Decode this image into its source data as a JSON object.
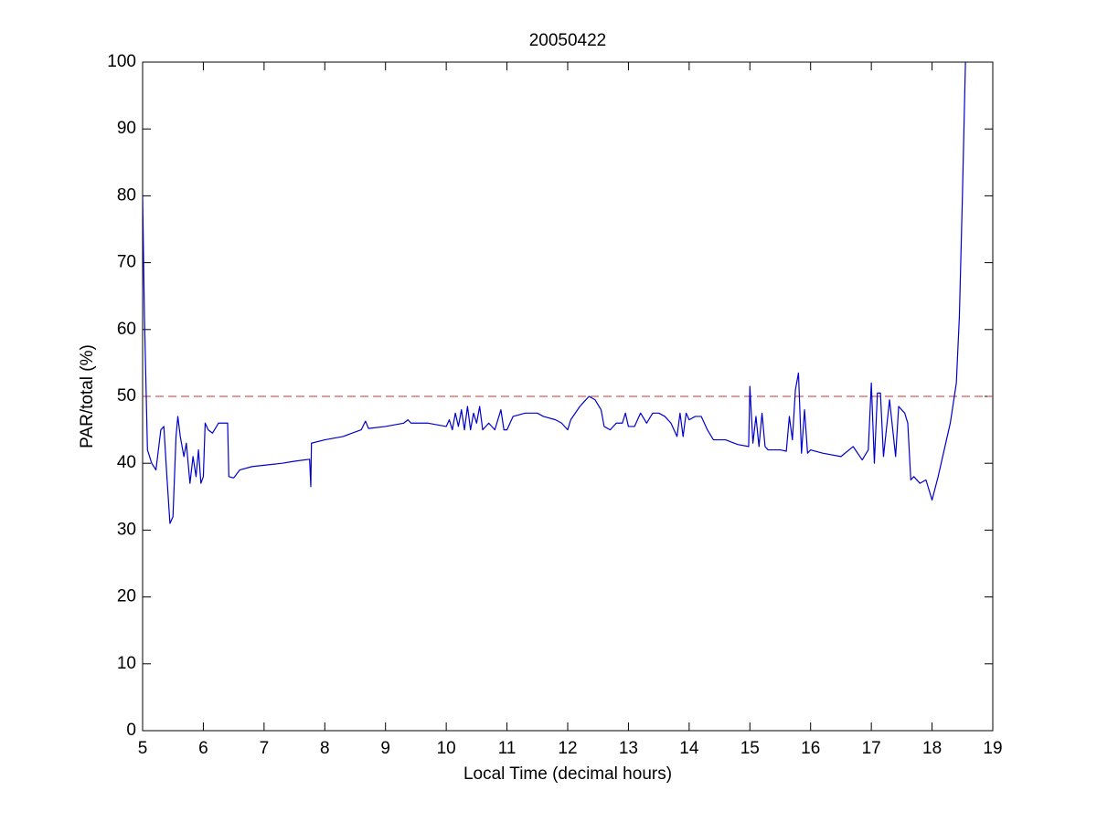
{
  "chart_data": {
    "type": "line",
    "title": "20050422",
    "x_label": "Local Time (decimal hours)",
    "y_label": "PAR/total (%)",
    "xlim": [
      5,
      19
    ],
    "ylim": [
      0,
      100
    ],
    "xticks": [
      5,
      6,
      7,
      8,
      9,
      10,
      11,
      12,
      13,
      14,
      15,
      16,
      17,
      18,
      19
    ],
    "yticks": [
      0,
      10,
      20,
      30,
      40,
      50,
      60,
      70,
      80,
      90,
      100
    ],
    "grid": false,
    "reference_line": {
      "value": 50,
      "color": "#cc3333"
    },
    "x": [
      5.0,
      5.03,
      5.08,
      5.15,
      5.22,
      5.3,
      5.35,
      5.4,
      5.45,
      5.5,
      5.55,
      5.58,
      5.62,
      5.68,
      5.72,
      5.78,
      5.83,
      5.88,
      5.92,
      5.96,
      6.0,
      6.03,
      6.08,
      6.15,
      6.25,
      6.35,
      6.4,
      6.42,
      6.5,
      6.6,
      6.8,
      7.0,
      7.3,
      7.5,
      7.75,
      7.77,
      7.78,
      8.0,
      8.3,
      8.6,
      8.67,
      8.72,
      9.0,
      9.3,
      9.37,
      9.42,
      9.7,
      10.0,
      10.05,
      10.1,
      10.15,
      10.2,
      10.25,
      10.3,
      10.35,
      10.4,
      10.45,
      10.5,
      10.55,
      10.6,
      10.7,
      10.8,
      10.9,
      10.95,
      11.0,
      11.1,
      11.3,
      11.5,
      11.6,
      11.8,
      11.9,
      12.0,
      12.05,
      12.2,
      12.35,
      12.45,
      12.55,
      12.6,
      12.7,
      12.8,
      12.9,
      12.95,
      13.0,
      13.1,
      13.2,
      13.3,
      13.4,
      13.5,
      13.6,
      13.7,
      13.8,
      13.85,
      13.9,
      13.95,
      14.0,
      14.1,
      14.2,
      14.3,
      14.4,
      14.6,
      14.8,
      14.98,
      15.0,
      15.05,
      15.1,
      15.15,
      15.2,
      15.25,
      15.3,
      15.5,
      15.6,
      15.65,
      15.7,
      15.75,
      15.8,
      15.85,
      15.9,
      15.95,
      16.0,
      16.2,
      16.5,
      16.7,
      16.85,
      16.95,
      17.0,
      17.05,
      17.1,
      17.15,
      17.2,
      17.3,
      17.4,
      17.45,
      17.55,
      17.6,
      17.65,
      17.7,
      17.8,
      17.9,
      18.0,
      18.1,
      18.2,
      18.3,
      18.4,
      18.45,
      18.5,
      18.55
    ],
    "series": [
      {
        "name": "PAR/total",
        "color": "#0000cc",
        "values": [
          80,
          62,
          42,
          40,
          39,
          45,
          45.5,
          38,
          31,
          32,
          44,
          47,
          44,
          41,
          43,
          37,
          41,
          38,
          42,
          37,
          38,
          46,
          45,
          44.5,
          46,
          46,
          46,
          38,
          37.8,
          39,
          39.5,
          39.7,
          40,
          40.3,
          40.6,
          36.5,
          43,
          43.5,
          44,
          45,
          46.3,
          45.2,
          45.5,
          46,
          46.5,
          46,
          46,
          45.5,
          46.5,
          45,
          47.5,
          45.5,
          48,
          45,
          48.5,
          45,
          47.5,
          46,
          48.5,
          45,
          46,
          45,
          48,
          45,
          45,
          47,
          47.5,
          47.5,
          47,
          46.5,
          46,
          45,
          46.5,
          48.5,
          50,
          49.5,
          48,
          45.5,
          45,
          46,
          46,
          47.5,
          45.5,
          45.5,
          47.5,
          46,
          47.5,
          47.5,
          47,
          46,
          44,
          47.5,
          44,
          47.5,
          46.5,
          47,
          47,
          45,
          43.5,
          43.5,
          42.8,
          42.5,
          51.5,
          43,
          47,
          42.5,
          47.5,
          42.5,
          42,
          42,
          41.8,
          47,
          43.5,
          51,
          53.5,
          41.5,
          48,
          41.5,
          42,
          41.5,
          41,
          42.5,
          40.5,
          42,
          52,
          40,
          50.5,
          50.5,
          41,
          49.5,
          41,
          48.5,
          47.5,
          46,
          37.5,
          38,
          37,
          37.5,
          34.5,
          38,
          42,
          46,
          52,
          62,
          80,
          100
        ]
      }
    ]
  }
}
